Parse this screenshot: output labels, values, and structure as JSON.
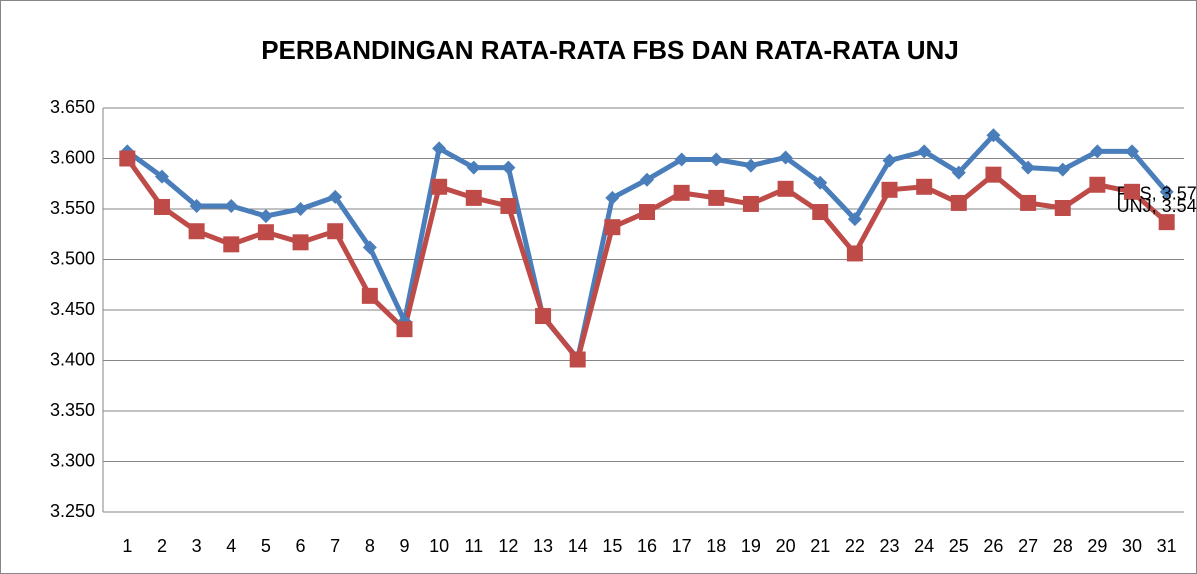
{
  "chart_data": {
    "type": "line",
    "title": "PERBANDINGAN RATA-RATA FBS DAN RATA-RATA UNJ",
    "categories": [
      "1",
      "2",
      "3",
      "4",
      "5",
      "6",
      "7",
      "8",
      "9",
      "10",
      "11",
      "12",
      "13",
      "14",
      "15",
      "16",
      "17",
      "18",
      "19",
      "20",
      "21",
      "22",
      "23",
      "24",
      "25",
      "26",
      "27",
      "28",
      "29",
      "30",
      "31"
    ],
    "series": [
      {
        "name": "FBS",
        "color": "#4a7ebb",
        "marker": "diamond",
        "values": [
          3.607,
          3.582,
          3.553,
          3.553,
          3.543,
          3.55,
          3.562,
          3.512,
          3.439,
          3.61,
          3.591,
          3.591,
          3.443,
          3.402,
          3.561,
          3.579,
          3.599,
          3.599,
          3.593,
          3.601,
          3.576,
          3.54,
          3.598,
          3.607,
          3.586,
          3.623,
          3.591,
          3.589,
          3.607,
          3.607,
          3.567
        ],
        "value_labels": [
          null,
          null,
          null,
          null,
          null,
          null,
          null,
          null,
          null,
          null,
          null,
          null,
          null,
          null,
          null,
          null,
          null,
          null,
          null,
          null,
          null,
          null,
          null,
          null,
          null,
          null,
          null,
          null,
          null,
          null,
          "FBS, 3.57"
        ]
      },
      {
        "name": "UNJ",
        "color": "#be4b48",
        "marker": "square",
        "values": [
          3.6,
          3.552,
          3.528,
          3.515,
          3.527,
          3.517,
          3.528,
          3.464,
          3.431,
          3.572,
          3.561,
          3.553,
          3.444,
          3.401,
          3.532,
          3.547,
          3.566,
          3.561,
          3.555,
          3.57,
          3.547,
          3.506,
          3.569,
          3.572,
          3.556,
          3.584,
          3.556,
          3.551,
          3.574,
          3.567,
          3.537
        ],
        "value_labels": [
          null,
          null,
          null,
          null,
          null,
          null,
          null,
          null,
          null,
          null,
          null,
          null,
          null,
          null,
          null,
          null,
          null,
          null,
          null,
          null,
          null,
          null,
          null,
          null,
          null,
          null,
          null,
          null,
          null,
          null,
          "UNJ, 3.54"
        ]
      }
    ],
    "ylim": [
      3.25,
      3.65
    ],
    "yticks": [
      {
        "value": 3.25,
        "label": "3.250"
      },
      {
        "value": 3.3,
        "label": "3.300"
      },
      {
        "value": 3.35,
        "label": "3.350"
      },
      {
        "value": 3.4,
        "label": "3.400"
      },
      {
        "value": 3.45,
        "label": "3.450"
      },
      {
        "value": 3.5,
        "label": "3.500"
      },
      {
        "value": 3.55,
        "label": "3.550"
      },
      {
        "value": 3.6,
        "label": "3.600"
      },
      {
        "value": 3.65,
        "label": "3.650"
      }
    ],
    "grid": true
  }
}
